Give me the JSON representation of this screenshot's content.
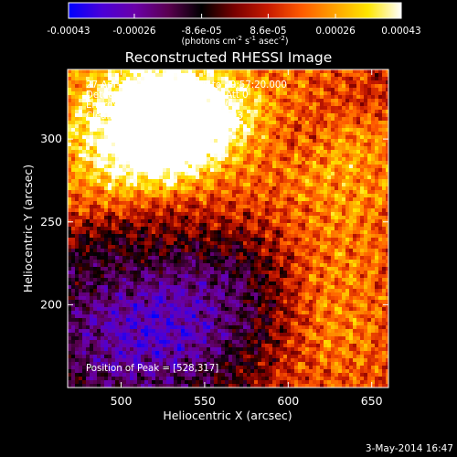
{
  "chart_data": {
    "type": "heatmap",
    "title": "Reconstructed RHESSI Image",
    "xlabel": "Heliocentric X (arcsec)",
    "ylabel": "Heliocentric Y (arcsec)",
    "xlim": [
      468,
      660
    ],
    "ylim": [
      150,
      342
    ],
    "x_ticks": [
      "500",
      "550",
      "600",
      "650"
    ],
    "x_tick_values": [
      500,
      550,
      600,
      650
    ],
    "y_ticks": [
      "200",
      "250",
      "300"
    ],
    "y_tick_values": [
      200,
      250,
      300
    ],
    "colorbar": {
      "range": [
        -0.00043,
        0.00043
      ],
      "ticks": [
        "-0.00043",
        "-0.00026",
        "-8.6e-05",
        "8.6e-05",
        "0.00026",
        "0.00043"
      ],
      "tick_values": [
        -0.00043,
        -0.00026,
        -8.6e-05,
        8.6e-05,
        0.00026,
        0.00043
      ],
      "unit_label": "(photons cm",
      "unit_exp_1": "-2",
      "unit_mid": " s",
      "unit_exp_2": "-1",
      "unit_mid_2": " asec",
      "unit_exp_3": "-2",
      "unit_close": ")",
      "colormap": [
        "#0000ff",
        "#4a00d8",
        "#6a00a8",
        "#5a0050",
        "#000000",
        "#7a0000",
        "#c81a00",
        "#ff5a00",
        "#ffa200",
        "#ffe600",
        "#ffffff"
      ]
    },
    "info": {
      "line1": "27-Apr-2012 19:54:40.000 to 19:57:20.000",
      "line2": "Detectors: 3F 5F 6F 7F 8F 9F, Att 0",
      "line3": "Energy Range: 25.0 - 50.0 keV",
      "line4_a": "Clean",
      "line4_b": "Total Counts: 3.97E+03"
    },
    "peak_label": "Position of Peak = [528,317]",
    "peak_position": [
      528,
      317
    ],
    "grid": false
  },
  "footer": {
    "date": "3-May-2014 16:47"
  }
}
